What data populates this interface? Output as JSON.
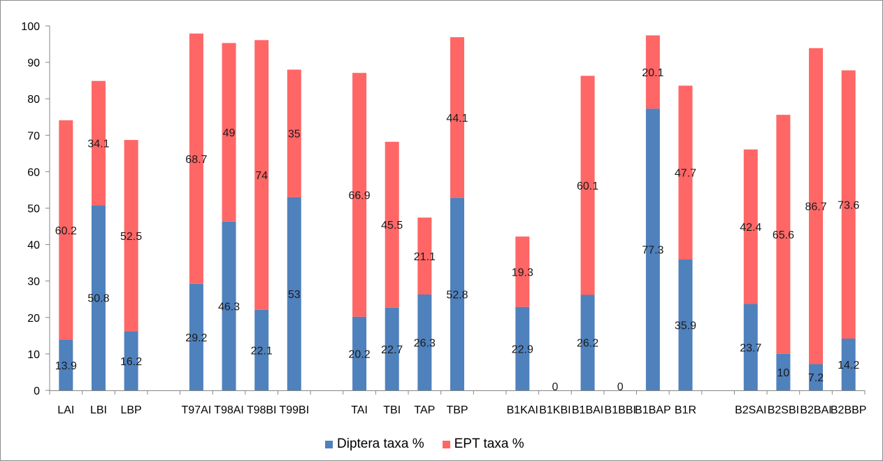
{
  "chart_data": {
    "type": "bar",
    "stacked": true,
    "categories": [
      "LAI",
      "LBI",
      "LBP",
      "T97AI",
      "T98AI",
      "T98BI",
      "T99BI",
      "TAI",
      "TBI",
      "TAP",
      "TBP",
      "B1KAI",
      "B1KBI",
      "B1BAI",
      "B1BBI",
      "B1BAP",
      "B1R",
      "B2SAI",
      "B2SBI",
      "B2BAI",
      "B2BBP"
    ],
    "groups": [
      3,
      4,
      4,
      6,
      4
    ],
    "series": [
      {
        "name": "Diptera taxa %",
        "color": "#4f81bd",
        "values": [
          13.9,
          50.8,
          16.2,
          29.2,
          46.3,
          22.1,
          53,
          20.2,
          22.7,
          26.3,
          52.8,
          22.9,
          0,
          26.2,
          0,
          77.3,
          35.9,
          23.7,
          10,
          7.2,
          14.2
        ],
        "labels": [
          "13.9",
          "50.8",
          "16.2",
          "29.2",
          "46.3",
          "22.1",
          "53",
          "20.2",
          "22.7",
          "26.3",
          "52.8",
          "22.9",
          "0",
          "26.2",
          "0",
          "77.3",
          "35.9",
          "23.7",
          "10",
          "7.2",
          "14.2"
        ]
      },
      {
        "name": "EPT taxa %",
        "color": "#ff6666",
        "values": [
          60.2,
          34.1,
          52.5,
          68.7,
          49,
          74,
          35,
          66.9,
          45.5,
          21.1,
          44.1,
          19.3,
          0,
          60.1,
          0,
          20.1,
          47.7,
          42.4,
          65.6,
          86.7,
          73.6
        ],
        "labels": [
          "60.2",
          "34.1",
          "52.5",
          "68.7",
          "49",
          "74",
          "35",
          "66.9",
          "45.5",
          "21.1",
          "44.1",
          "19.3",
          "",
          "60.1",
          "",
          "20.1",
          "47.7",
          "42.4",
          "65.6",
          "86.7",
          "73.6"
        ]
      }
    ],
    "ylim": [
      0,
      100
    ],
    "yticks": [
      "0",
      "10",
      "20",
      "30",
      "40",
      "50",
      "60",
      "70",
      "80",
      "90",
      "100"
    ],
    "grid": false,
    "legend_position": "bottom",
    "title": "",
    "xlabel": "",
    "ylabel": ""
  }
}
